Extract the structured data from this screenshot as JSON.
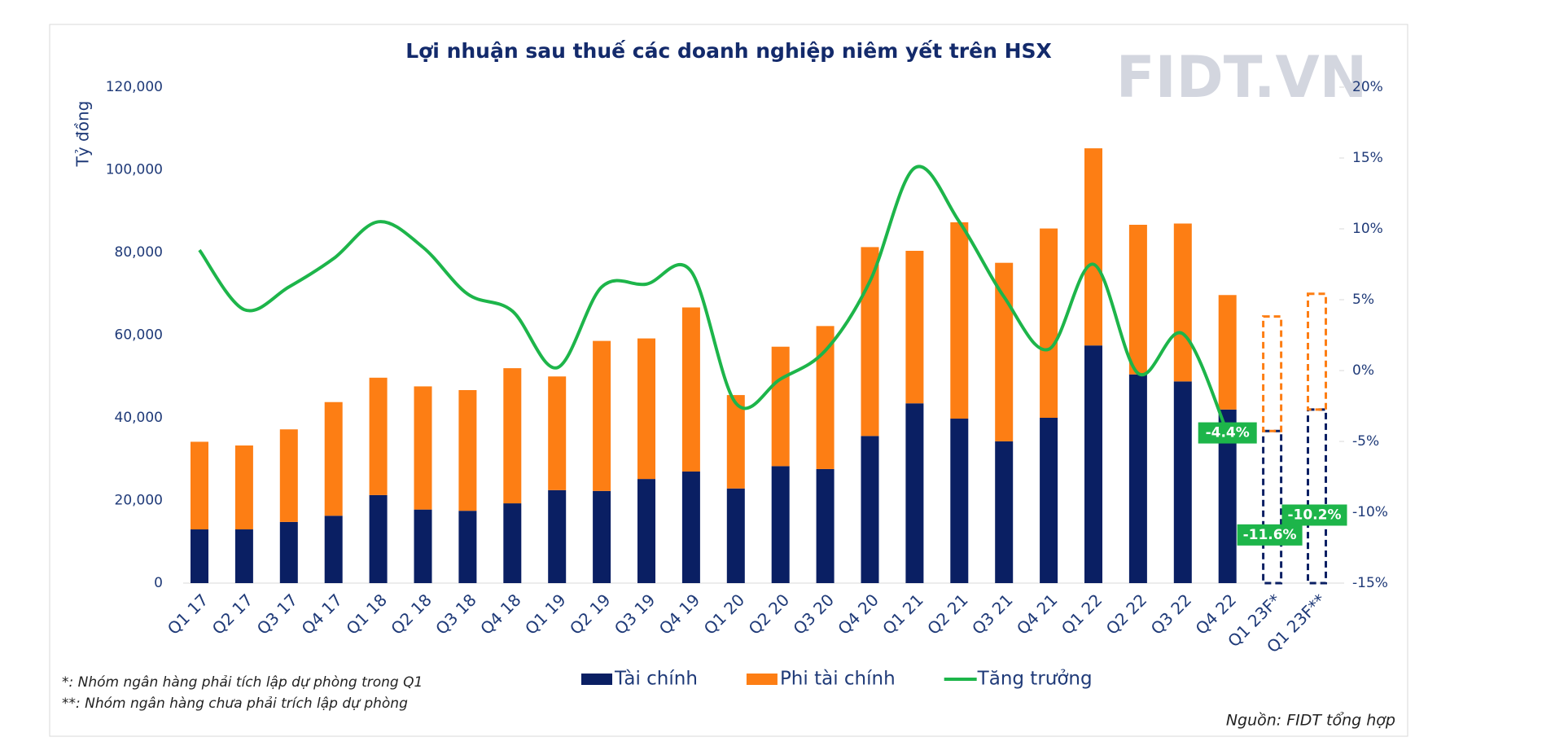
{
  "chart_data": {
    "type": "bar_line",
    "title": "Lợi nhuận sau thuế các doanh nghiệp niêm yết trên HSX",
    "watermark": "FIDT.VN",
    "y_label": "Tỷ đồng",
    "categories": [
      "Q1 17",
      "Q2 17",
      "Q3 17",
      "Q4 17",
      "Q1 18",
      "Q2 18",
      "Q3 18",
      "Q4 18",
      "Q1 19",
      "Q2 19",
      "Q3 19",
      "Q4 19",
      "Q1 20",
      "Q2 20",
      "Q3 20",
      "Q4 20",
      "Q1 21",
      "Q2 21",
      "Q3 21",
      "Q4 21",
      "Q1 22",
      "Q2 22",
      "Q3 22",
      "Q4 22",
      "Q1 23F*",
      "Q1 23F**"
    ],
    "dashed_categories": [
      "Q1 23F*",
      "Q1 23F**"
    ],
    "series": [
      {
        "name": "Tài chính",
        "color": "#0a1f63",
        "stacked": true,
        "values": [
          13000,
          13000,
          14800,
          16300,
          21300,
          17800,
          17500,
          19300,
          22500,
          22300,
          25200,
          27000,
          22900,
          28300,
          27600,
          35600,
          43500,
          39800,
          34300,
          40000,
          57500,
          50500,
          48800,
          42000,
          36800,
          42000
        ]
      },
      {
        "name": "Phi tài chính",
        "color": "#fd7e14",
        "stacked": true,
        "values": [
          21200,
          20300,
          22400,
          27500,
          28400,
          29800,
          29200,
          32700,
          27500,
          36300,
          34000,
          39700,
          22600,
          28900,
          34600,
          45700,
          36900,
          47500,
          43200,
          45800,
          47700,
          36200,
          38200,
          27700,
          27700,
          28000
        ]
      },
      {
        "name": "Tăng trưởng",
        "color": "#1db54a",
        "axis": "y2",
        "line": true,
        "values": [
          8.5,
          4.3,
          5.9,
          7.9,
          10.5,
          8.7,
          5.4,
          4.2,
          0.2,
          5.9,
          6.1,
          7.0,
          -2.3,
          -0.6,
          1.4,
          6.3,
          14.3,
          10.5,
          5.2,
          1.5,
          7.5,
          -0.2,
          2.6,
          -4.4,
          null,
          null
        ],
        "value_labels": [
          null,
          null,
          null,
          null,
          null,
          null,
          null,
          null,
          null,
          null,
          null,
          null,
          null,
          null,
          null,
          null,
          null,
          null,
          null,
          null,
          null,
          null,
          null,
          "-4.4%",
          null,
          null
        ]
      }
    ],
    "annotations": [
      {
        "value": -11.6,
        "label": "-11.6%"
      },
      {
        "value": -10.2,
        "label": "-10.2%"
      }
    ],
    "ylim": [
      0,
      120000
    ],
    "yticks": [
      0,
      {
        "value": 20000,
        "label": "20,000"
      },
      {
        "value": 40000,
        "label": "40,000"
      },
      {
        "value": 60000,
        "label": "60,000"
      },
      {
        "value": 80000,
        "label": "80,000"
      },
      {
        "value": 100000,
        "label": "100,000"
      },
      {
        "value": 120000,
        "label": "120,000"
      }
    ],
    "y2lim": [
      -15,
      20
    ],
    "y2ticks": [
      {
        "value": -15,
        "label": "-15%"
      },
      {
        "value": -10,
        "label": "-10%"
      },
      {
        "value": -5,
        "label": "-5%"
      },
      {
        "value": 0,
        "label": "0%"
      },
      {
        "value": 5,
        "label": "5%"
      },
      {
        "value": 10,
        "label": "10%"
      },
      {
        "value": 15,
        "label": "15%"
      },
      {
        "value": 20,
        "label": "20%"
      }
    ],
    "footnotes": [
      "*: Nhóm ngân hàng phải tích lập dự phòng trong Q1",
      "**: Nhóm ngân hàng chưa phải trích lập dự phòng"
    ],
    "source": "Nguồn: FIDT tổng hợp"
  }
}
